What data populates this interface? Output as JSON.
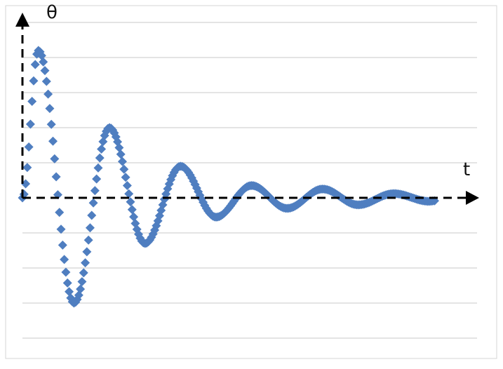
{
  "chart_data": {
    "type": "scatter",
    "title": "",
    "xlabel": "t",
    "ylabel": "θ",
    "grid": true,
    "legend": "none",
    "marker": "diamond",
    "series": [
      {
        "color": "#4f7ec0",
        "model": "damped-oscillation",
        "initial_value": 0,
        "peaks": [
          {
            "t": 0.45,
            "theta": 4.2
          },
          {
            "t": 1.45,
            "theta": -3.0
          },
          {
            "t": 2.45,
            "theta": 2.0
          },
          {
            "t": 3.45,
            "theta": -1.3
          },
          {
            "t": 4.45,
            "theta": 0.9
          },
          {
            "t": 5.45,
            "theta": -0.55
          },
          {
            "t": 6.45,
            "theta": 0.35
          },
          {
            "t": 7.45,
            "theta": -0.3
          },
          {
            "t": 8.45,
            "theta": 0.25
          },
          {
            "t": 9.45,
            "theta": -0.2
          },
          {
            "t": 10.45,
            "theta": 0.12
          },
          {
            "t": 11.45,
            "theta": -0.1
          }
        ],
        "t_end": 11.6
      }
    ],
    "xlim": [
      0,
      12.5
    ],
    "ylim": [
      -4,
      5
    ]
  }
}
